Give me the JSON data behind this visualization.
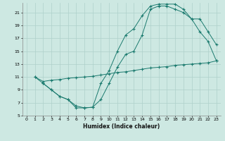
{
  "xlabel": "Humidex (Indice chaleur)",
  "background_color": "#cde8e2",
  "grid_color": "#aed0cb",
  "line_color": "#1a7a6e",
  "xlim": [
    -0.5,
    23.5
  ],
  "ylim": [
    5,
    22.5
  ],
  "xticks": [
    0,
    1,
    2,
    3,
    4,
    5,
    6,
    7,
    8,
    9,
    10,
    11,
    12,
    13,
    14,
    15,
    16,
    17,
    18,
    19,
    20,
    21,
    22,
    23
  ],
  "yticks": [
    5,
    7,
    9,
    11,
    13,
    15,
    17,
    19,
    21
  ],
  "line1_x": [
    1,
    2,
    3,
    4,
    5,
    6,
    7,
    8,
    9,
    10,
    11,
    12,
    13,
    14,
    15,
    16,
    17,
    18,
    19,
    20,
    21,
    22,
    23
  ],
  "line1_y": [
    11,
    10,
    9,
    8,
    7.5,
    6.2,
    6.2,
    6.3,
    10,
    12,
    15,
    17.5,
    18.5,
    20.5,
    22,
    22.3,
    22.3,
    22.3,
    21.5,
    20,
    18,
    16.5,
    13.5
  ],
  "line2_x": [
    1,
    2,
    3,
    4,
    5,
    6,
    7,
    8,
    9,
    10,
    11,
    12,
    13,
    14,
    15,
    16,
    17,
    18,
    19,
    20,
    21,
    22,
    23
  ],
  "line2_y": [
    11.0,
    10.3,
    10.5,
    10.6,
    10.8,
    10.9,
    11.0,
    11.1,
    11.3,
    11.5,
    11.7,
    11.8,
    12.0,
    12.2,
    12.4,
    12.5,
    12.6,
    12.8,
    12.9,
    13.0,
    13.1,
    13.2,
    13.5
  ],
  "line3_x": [
    2,
    3,
    4,
    5,
    6,
    7,
    8,
    9,
    10,
    11,
    12,
    13,
    14,
    15,
    16,
    17,
    18,
    19,
    20,
    21,
    22,
    23
  ],
  "line3_y": [
    10,
    9,
    8,
    7.5,
    6.5,
    6.2,
    6.3,
    7.5,
    10,
    12.5,
    14.5,
    15,
    17.5,
    21.5,
    22,
    22,
    21.5,
    21,
    20,
    20,
    18,
    16
  ]
}
